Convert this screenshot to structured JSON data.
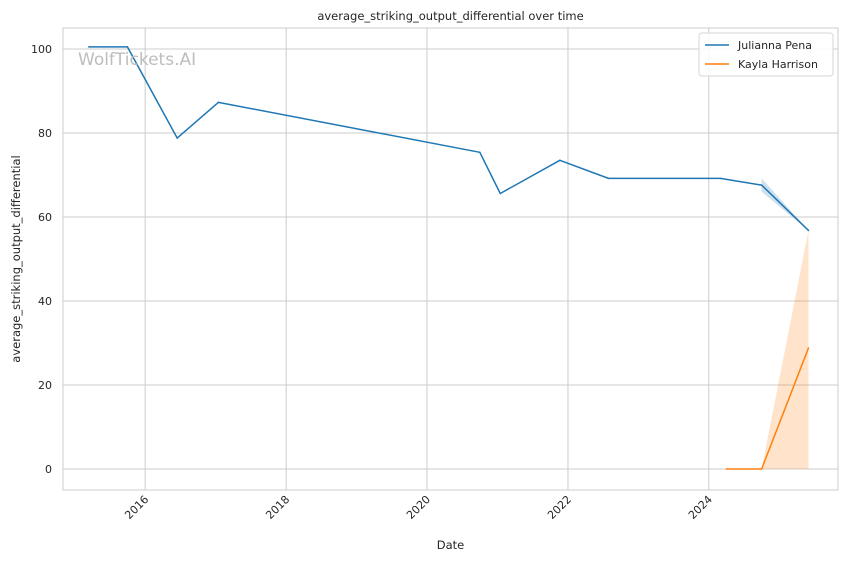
{
  "chart_data": {
    "type": "line",
    "title": "average_striking_output_differential over time",
    "xlabel": "Date",
    "ylabel": "average_striking_output_differential",
    "watermark": "WolfTickets.AI",
    "xlim": [
      "2014-11-01",
      "2025-11-01"
    ],
    "ylim": [
      -5,
      105
    ],
    "x_ticks": [
      "2016",
      "2018",
      "2020",
      "2022",
      "2024"
    ],
    "y_ticks": [
      0,
      20,
      40,
      60,
      80,
      100
    ],
    "grid": true,
    "legend_position": "top-right",
    "series": [
      {
        "name": "Julianna Pena",
        "color": "#1f77b4",
        "points": [
          {
            "x": "2015-03-15",
            "y": 100.5
          },
          {
            "x": "2015-10-01",
            "y": 100.5
          },
          {
            "x": "2016-06-15",
            "y": 78.8
          },
          {
            "x": "2017-01-15",
            "y": 87.3
          },
          {
            "x": "2020-10-01",
            "y": 75.4
          },
          {
            "x": "2021-01-15",
            "y": 65.6
          },
          {
            "x": "2021-11-20",
            "y": 73.5
          },
          {
            "x": "2022-07-30",
            "y": 69.2
          },
          {
            "x": "2024-03-01",
            "y": 69.2
          },
          {
            "x": "2024-10-01",
            "y": 67.6
          },
          {
            "x": "2025-06-01",
            "y": 56.8
          }
        ],
        "band": [
          {
            "x": "2024-10-01",
            "lo": 66.0,
            "hi": 69.2
          },
          {
            "x": "2025-06-01",
            "lo": 56.8,
            "hi": 56.8
          }
        ]
      },
      {
        "name": "Kayla Harrison",
        "color": "#ff7f0e",
        "points": [
          {
            "x": "2024-04-01",
            "y": 0
          },
          {
            "x": "2024-10-01",
            "y": 0
          },
          {
            "x": "2025-06-01",
            "y": 28.8
          }
        ],
        "band": [
          {
            "x": "2024-10-01",
            "lo": 0,
            "hi": 0
          },
          {
            "x": "2025-06-01",
            "lo": 0,
            "hi": 56.8
          }
        ]
      }
    ]
  }
}
